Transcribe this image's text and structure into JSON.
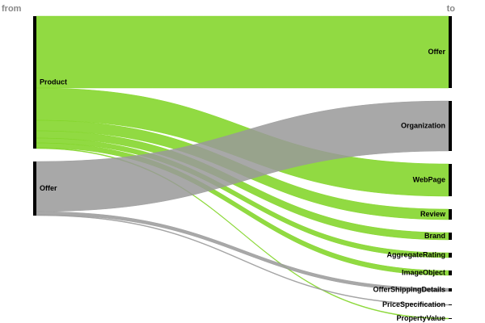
{
  "chart_data": {
    "type": "sankey",
    "from_label": "from",
    "to_label": "to",
    "categories": [
      "Offer",
      "Organization",
      "WebPage",
      "Review",
      "Brand",
      "AggregateRating",
      "ImageObject",
      "OfferShippingDetails",
      "PriceSpecification",
      "PropertyValue"
    ],
    "series": [
      {
        "name": "Product",
        "color": "#7ed321",
        "values": [
          89,
          null,
          40,
          13,
          9,
          6,
          6,
          null,
          null,
          1
        ]
      },
      {
        "name": "Offer",
        "color": "#999999",
        "values": [
          null,
          62,
          null,
          null,
          null,
          null,
          null,
          4,
          1,
          null
        ]
      }
    ]
  }
}
